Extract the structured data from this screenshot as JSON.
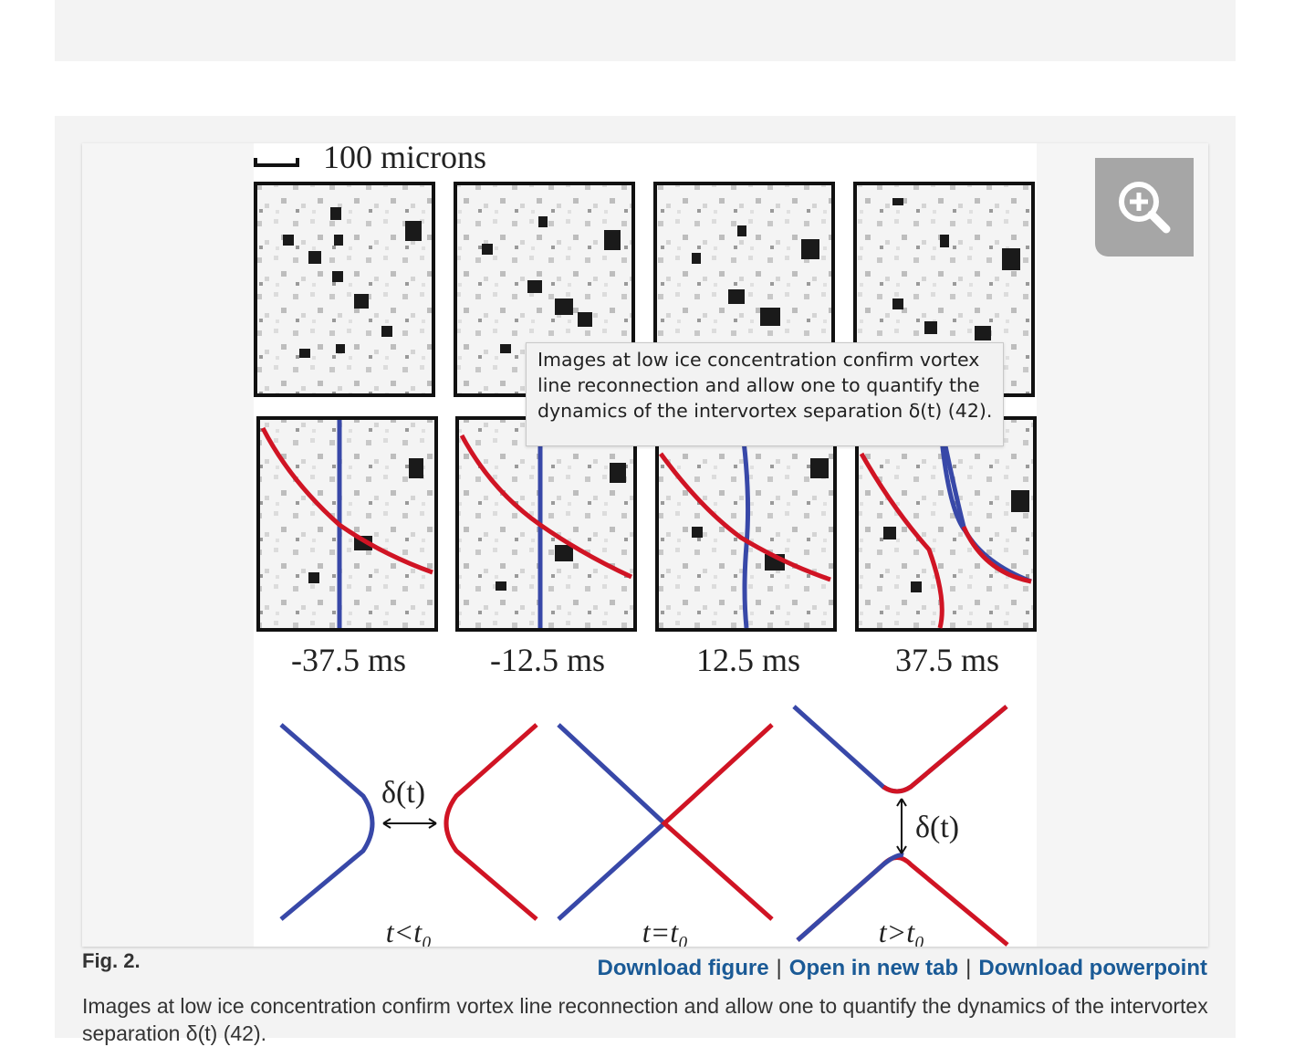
{
  "figure": {
    "label": "Fig. 2.",
    "scale_bar_label": "100 microns",
    "time_labels": [
      "-37.5 ms",
      "-12.5 ms",
      "12.5 ms",
      "37.5 ms"
    ],
    "delta_label": "δ(t)",
    "condition_labels": [
      "t<t₀",
      "t=t₀",
      "t>t₀"
    ],
    "colors": {
      "vortex_a": "#3848a8",
      "vortex_b": "#d01424"
    }
  },
  "tooltip": {
    "text": "Images at low ice concentration confirm vortex\nline reconnection and allow one to quantify the\ndynamics of the intervortex separation δ(t) (42)."
  },
  "links": {
    "download_figure": "Download figure",
    "open_new_tab": "Open in new tab",
    "download_powerpoint": "Download powerpoint",
    "separator": "|"
  },
  "caption": {
    "text": "Images at low ice concentration confirm vortex line reconnection and allow one to quantify the dynamics of the intervortex separation δ(t) (42)."
  },
  "zoom_icon": "zoom-in-icon"
}
